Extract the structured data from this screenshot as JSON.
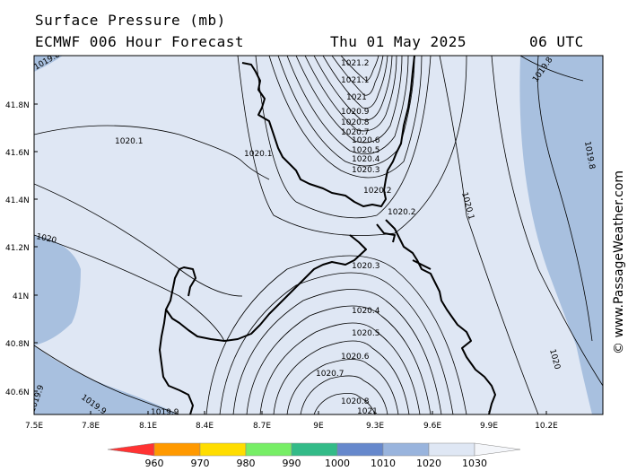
{
  "header": {
    "title": "Surface Pressure (mb)",
    "model": "ECMWF 006 Hour Forecast",
    "date": "Thu 01 May 2025",
    "time": "06 UTC"
  },
  "map": {
    "lon_range": [
      7.5,
      10.5
    ],
    "lat_range": [
      40.5,
      42.0
    ],
    "x_ticks": [
      "7.5E",
      "7.8E",
      "8.1E",
      "8.4E",
      "8.7E",
      "9E",
      "9.3E",
      "9.6E",
      "9.9E",
      "10.2E"
    ],
    "y_ticks": [
      "41.8N",
      "41.6N",
      "41.4N",
      "41.2N",
      "41N",
      "40.8N",
      "40.6N"
    ],
    "contour_labels": [
      "1020.1",
      "1020.1",
      "1020",
      "1019.9",
      "1019.8",
      "1019.8",
      "1019.9",
      "1021.2",
      "1021.1",
      "1021",
      "1020.9",
      "1020.8",
      "1020.7",
      "1020.6",
      "1020.5",
      "1020.4",
      "1020.3",
      "1020.2",
      "1020.2",
      "1020.1",
      "1020",
      "1019.9",
      "1019.8",
      "1020.3",
      "1020.4",
      "1020.5",
      "1020.6",
      "1020.7",
      "1020.8",
      "1020.9",
      "1021"
    ],
    "colors": {
      "land_outline": "#000000",
      "fill_1020_1030": "#dfe7f4",
      "fill_1010_1020": "#a8c0df"
    }
  },
  "colorbar": {
    "labels": [
      "960",
      "970",
      "980",
      "990",
      "1000",
      "1010",
      "1020",
      "1030"
    ],
    "colors": [
      "#ff0000",
      "#ff9900",
      "#ffff00",
      "#80ff66",
      "#33cc99",
      "#6699dd",
      "#99bbdd",
      "#dde6f4"
    ]
  },
  "copyright": "© www.PassageWeather.com"
}
